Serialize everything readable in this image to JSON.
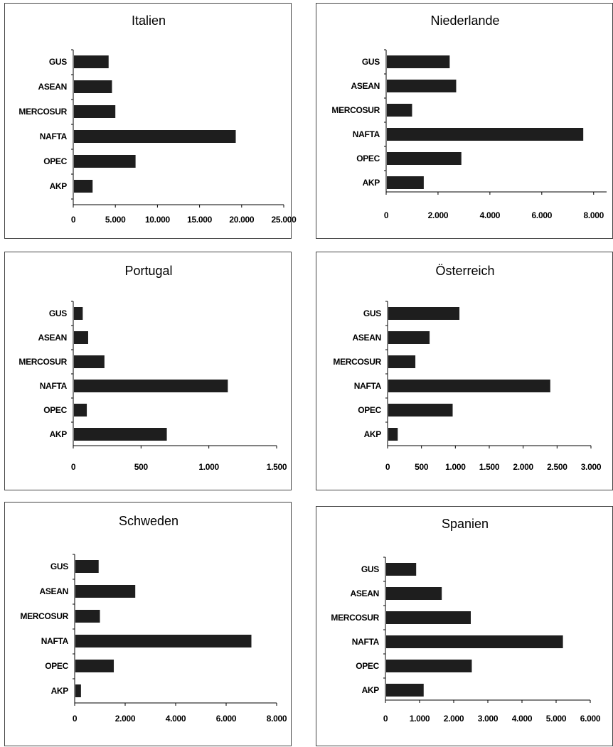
{
  "chart_data": [
    {
      "type": "bar",
      "orientation": "horizontal",
      "title": "Italien",
      "categories": [
        "GUS",
        "ASEAN",
        "MERCOSUR",
        "NAFTA",
        "OPEC",
        "AKP"
      ],
      "values": [
        4200,
        4600,
        5000,
        19300,
        7400,
        2300
      ],
      "xlim": [
        0,
        25000
      ],
      "xticks": [
        0,
        5000,
        10000,
        15000,
        20000,
        25000
      ],
      "xtick_labels": [
        "0",
        "5.000",
        "10.000",
        "15.000",
        "20.000",
        "25.000"
      ],
      "bar_color": "#1e1e1e"
    },
    {
      "type": "bar",
      "orientation": "horizontal",
      "title": "Niederlande",
      "categories": [
        "GUS",
        "ASEAN",
        "MERCOSUR",
        "NAFTA",
        "OPEC",
        "AKP"
      ],
      "values": [
        2450,
        2700,
        1000,
        7600,
        2900,
        1450
      ],
      "xlim": [
        0,
        8500
      ],
      "xticks": [
        0,
        2000,
        4000,
        6000,
        8000
      ],
      "xtick_labels": [
        "0",
        "2.000",
        "4.000",
        "6.000",
        "8.000"
      ],
      "bar_color": "#1e1e1e"
    },
    {
      "type": "bar",
      "orientation": "horizontal",
      "title": "Portugal",
      "categories": [
        "GUS",
        "ASEAN",
        "MERCOSUR",
        "NAFTA",
        "OPEC",
        "AKP"
      ],
      "values": [
        70,
        110,
        230,
        1140,
        100,
        690
      ],
      "xlim": [
        0,
        1500
      ],
      "xticks": [
        0,
        500,
        1000,
        1500
      ],
      "xtick_labels": [
        "0",
        "500",
        "1.000",
        "1.500"
      ],
      "bar_color": "#1e1e1e"
    },
    {
      "type": "bar",
      "orientation": "horizontal",
      "title": "Österreich",
      "categories": [
        "GUS",
        "ASEAN",
        "MERCOSUR",
        "NAFTA",
        "OPEC",
        "AKP"
      ],
      "values": [
        1060,
        620,
        410,
        2400,
        960,
        150
      ],
      "xlim": [
        0,
        3000
      ],
      "xticks": [
        0,
        500,
        1000,
        1500,
        2000,
        2500,
        3000
      ],
      "xtick_labels": [
        "0",
        "500",
        "1.000",
        "1.500",
        "2.000",
        "2.500",
        "3.000"
      ],
      "bar_color": "#1e1e1e"
    },
    {
      "type": "bar",
      "orientation": "horizontal",
      "title": "Schweden",
      "categories": [
        "GUS",
        "ASEAN",
        "MERCOSUR",
        "NAFTA",
        "OPEC",
        "AKP"
      ],
      "values": [
        950,
        2400,
        1000,
        7000,
        1550,
        250
      ],
      "xlim": [
        0,
        8000
      ],
      "xticks": [
        0,
        2000,
        4000,
        6000,
        8000
      ],
      "xtick_labels": [
        "0",
        "2.000",
        "4.000",
        "6.000",
        "8.000"
      ],
      "bar_color": "#1e1e1e"
    },
    {
      "type": "bar",
      "orientation": "horizontal",
      "title": "Spanien",
      "categories": [
        "GUS",
        "ASEAN",
        "MERCOSUR",
        "NAFTA",
        "OPEC",
        "AKP"
      ],
      "values": [
        900,
        1650,
        2500,
        5200,
        2530,
        1120
      ],
      "xlim": [
        0,
        6000
      ],
      "xticks": [
        0,
        1000,
        2000,
        3000,
        4000,
        5000,
        6000
      ],
      "xtick_labels": [
        "0",
        "1.000",
        "2.000",
        "3.000",
        "4.000",
        "5.000",
        "6.000"
      ],
      "bar_color": "#1e1e1e"
    }
  ]
}
